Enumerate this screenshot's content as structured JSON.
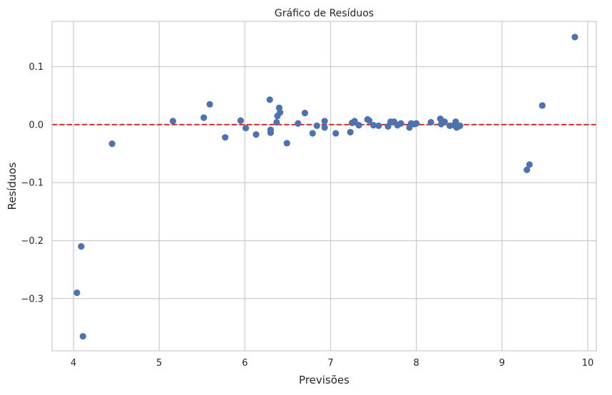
{
  "chart_data": {
    "type": "scatter",
    "title": "Gráfico de Resíduos",
    "xlabel": "Previsões",
    "ylabel": "Resíduos",
    "xlim": [
      3.75,
      10.1
    ],
    "ylim": [
      -0.39,
      0.178
    ],
    "grid": true,
    "x_ticks": [
      4,
      5,
      6,
      7,
      8,
      9,
      10
    ],
    "x_tick_labels": [
      "4",
      "5",
      "6",
      "7",
      "8",
      "9",
      "10"
    ],
    "y_ticks": [
      0.1,
      0.0,
      -0.1,
      -0.2,
      -0.3
    ],
    "y_tick_labels": [
      "0.1",
      "0.0",
      "−0.1",
      "−0.2",
      "−0.3"
    ],
    "reference_line": {
      "y": 0,
      "style": "dashed",
      "color": "#ff0000"
    },
    "point_color": "#4c72b0",
    "points": [
      {
        "x": 4.04,
        "y": -0.29
      },
      {
        "x": 4.09,
        "y": -0.21
      },
      {
        "x": 4.11,
        "y": -0.365
      },
      {
        "x": 4.45,
        "y": -0.033
      },
      {
        "x": 5.16,
        "y": 0.006
      },
      {
        "x": 5.52,
        "y": 0.012
      },
      {
        "x": 5.59,
        "y": 0.035
      },
      {
        "x": 5.77,
        "y": -0.022
      },
      {
        "x": 5.95,
        "y": 0.007
      },
      {
        "x": 6.01,
        "y": -0.006
      },
      {
        "x": 6.13,
        "y": -0.017
      },
      {
        "x": 6.29,
        "y": 0.043
      },
      {
        "x": 6.3,
        "y": -0.009
      },
      {
        "x": 6.3,
        "y": -0.014
      },
      {
        "x": 6.37,
        "y": 0.004
      },
      {
        "x": 6.38,
        "y": 0.015
      },
      {
        "x": 6.4,
        "y": 0.029
      },
      {
        "x": 6.41,
        "y": 0.021
      },
      {
        "x": 6.49,
        "y": -0.032
      },
      {
        "x": 6.62,
        "y": 0.002
      },
      {
        "x": 6.7,
        "y": 0.02
      },
      {
        "x": 6.79,
        "y": -0.015
      },
      {
        "x": 6.84,
        "y": -0.002
      },
      {
        "x": 6.93,
        "y": 0.006
      },
      {
        "x": 6.93,
        "y": -0.005
      },
      {
        "x": 7.06,
        "y": -0.015
      },
      {
        "x": 7.23,
        "y": -0.013
      },
      {
        "x": 7.25,
        "y": 0.003
      },
      {
        "x": 7.28,
        "y": 0.006
      },
      {
        "x": 7.33,
        "y": -0.001
      },
      {
        "x": 7.43,
        "y": 0.009
      },
      {
        "x": 7.45,
        "y": 0.007
      },
      {
        "x": 7.5,
        "y": -0.001
      },
      {
        "x": 7.56,
        "y": -0.002
      },
      {
        "x": 7.67,
        "y": -0.003
      },
      {
        "x": 7.7,
        "y": 0.005
      },
      {
        "x": 7.74,
        "y": 0.005
      },
      {
        "x": 7.78,
        "y": -0.001
      },
      {
        "x": 7.82,
        "y": 0.002
      },
      {
        "x": 7.92,
        "y": -0.005
      },
      {
        "x": 7.94,
        "y": 0.002
      },
      {
        "x": 7.98,
        "y": 0.001
      },
      {
        "x": 8.0,
        "y": 0.002
      },
      {
        "x": 8.17,
        "y": 0.004
      },
      {
        "x": 8.28,
        "y": 0.01
      },
      {
        "x": 8.29,
        "y": 0.001
      },
      {
        "x": 8.33,
        "y": 0.005
      },
      {
        "x": 8.39,
        "y": -0.002
      },
      {
        "x": 8.44,
        "y": -0.001
      },
      {
        "x": 8.46,
        "y": 0.005
      },
      {
        "x": 8.47,
        "y": -0.005
      },
      {
        "x": 8.49,
        "y": -0.003
      },
      {
        "x": 8.51,
        "y": -0.002
      },
      {
        "x": 9.29,
        "y": -0.078
      },
      {
        "x": 9.32,
        "y": -0.069
      },
      {
        "x": 9.47,
        "y": 0.033
      },
      {
        "x": 9.85,
        "y": 0.151
      }
    ]
  }
}
